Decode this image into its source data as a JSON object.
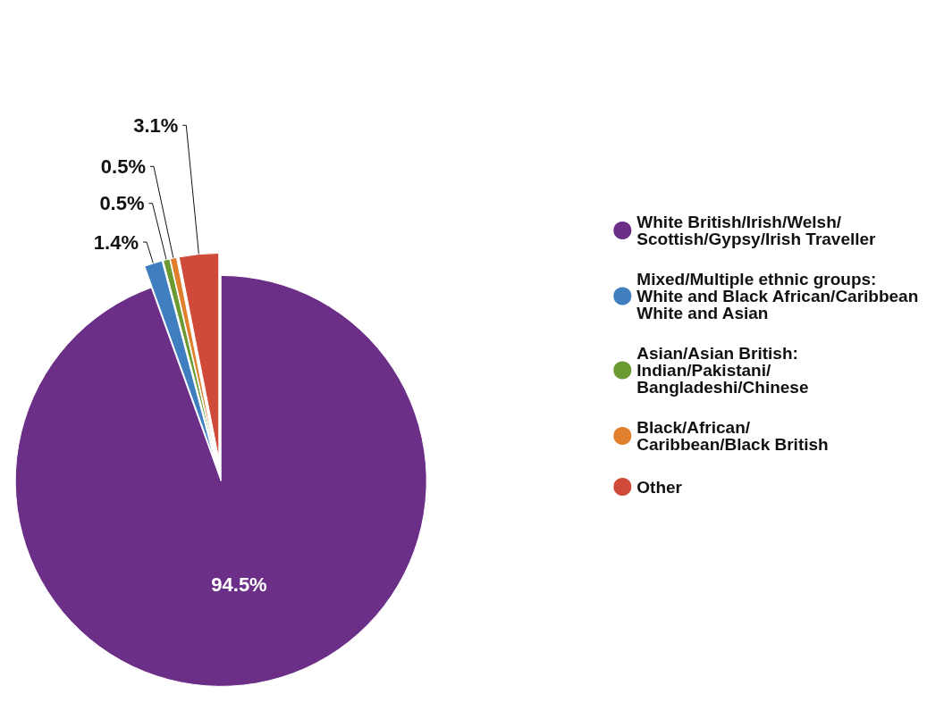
{
  "chart_data": {
    "type": "pie",
    "categories": [
      "White British/Irish/Welsh/\nScottish/Gypsy/Irish Traveller",
      "Mixed/Multiple ethnic groups:\nWhite and Black African/Caribbean\nWhite and Asian",
      "Asian/Asian British:\nIndian/Pakistani/\nBangladeshi/Chinese",
      "Black/African/\nCaribbean/Black British",
      "Other"
    ],
    "values": [
      94.5,
      1.4,
      0.5,
      0.5,
      3.1
    ],
    "colors": [
      "#6b2f88",
      "#3f7fc0",
      "#6b9a32",
      "#e07f2c",
      "#cf4a38"
    ],
    "value_labels": [
      "94.5%",
      "1.4%",
      "0.5%",
      "0.5%",
      "3.1%"
    ],
    "legend": "right"
  }
}
